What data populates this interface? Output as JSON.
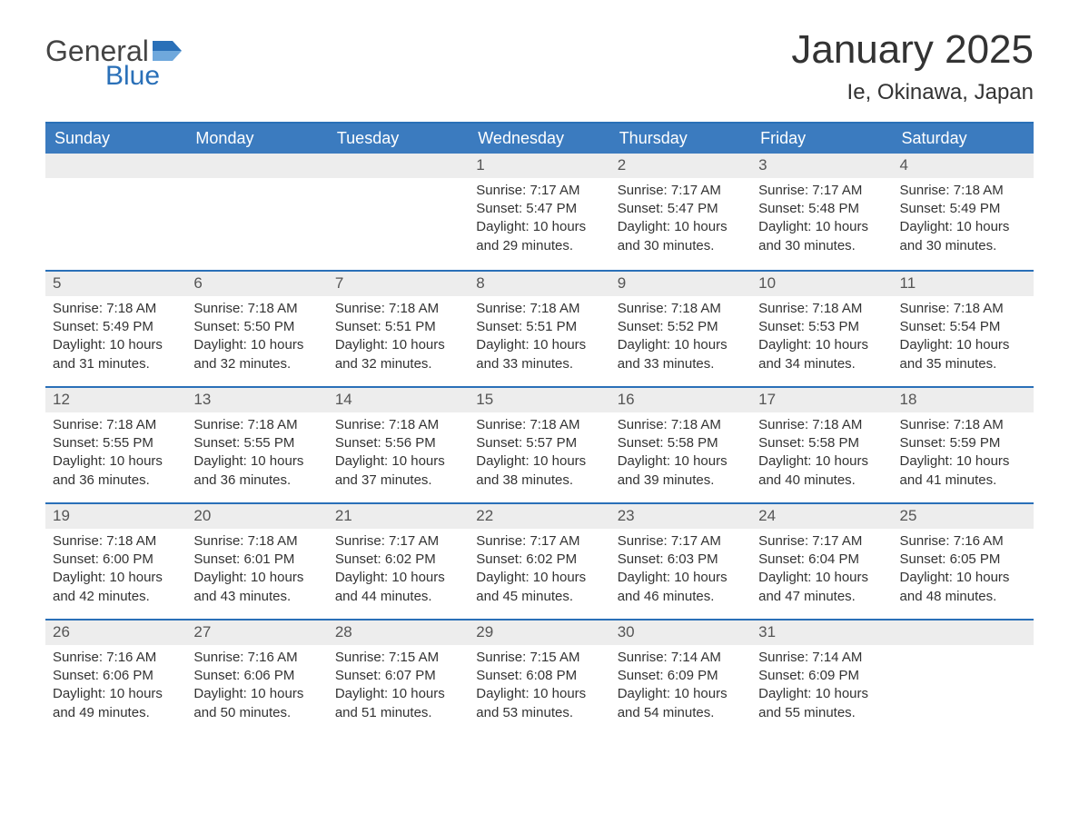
{
  "brand": {
    "line1": "General",
    "line2": "Blue"
  },
  "title": "January 2025",
  "location": "Ie, Okinawa, Japan",
  "colors": {
    "header_bg": "#3b7bbf",
    "accent": "#2a70b8",
    "daynum_bg": "#ededed",
    "text": "#333333",
    "bg": "#ffffff"
  },
  "day_names": [
    "Sunday",
    "Monday",
    "Tuesday",
    "Wednesday",
    "Thursday",
    "Friday",
    "Saturday"
  ],
  "weeks": [
    [
      {
        "blank": true
      },
      {
        "blank": true
      },
      {
        "blank": true
      },
      {
        "n": "1",
        "sunrise": "7:17 AM",
        "sunset": "5:47 PM",
        "daylight": "10 hours and 29 minutes."
      },
      {
        "n": "2",
        "sunrise": "7:17 AM",
        "sunset": "5:47 PM",
        "daylight": "10 hours and 30 minutes."
      },
      {
        "n": "3",
        "sunrise": "7:17 AM",
        "sunset": "5:48 PM",
        "daylight": "10 hours and 30 minutes."
      },
      {
        "n": "4",
        "sunrise": "7:18 AM",
        "sunset": "5:49 PM",
        "daylight": "10 hours and 30 minutes."
      }
    ],
    [
      {
        "n": "5",
        "sunrise": "7:18 AM",
        "sunset": "5:49 PM",
        "daylight": "10 hours and 31 minutes."
      },
      {
        "n": "6",
        "sunrise": "7:18 AM",
        "sunset": "5:50 PM",
        "daylight": "10 hours and 32 minutes."
      },
      {
        "n": "7",
        "sunrise": "7:18 AM",
        "sunset": "5:51 PM",
        "daylight": "10 hours and 32 minutes."
      },
      {
        "n": "8",
        "sunrise": "7:18 AM",
        "sunset": "5:51 PM",
        "daylight": "10 hours and 33 minutes."
      },
      {
        "n": "9",
        "sunrise": "7:18 AM",
        "sunset": "5:52 PM",
        "daylight": "10 hours and 33 minutes."
      },
      {
        "n": "10",
        "sunrise": "7:18 AM",
        "sunset": "5:53 PM",
        "daylight": "10 hours and 34 minutes."
      },
      {
        "n": "11",
        "sunrise": "7:18 AM",
        "sunset": "5:54 PM",
        "daylight": "10 hours and 35 minutes."
      }
    ],
    [
      {
        "n": "12",
        "sunrise": "7:18 AM",
        "sunset": "5:55 PM",
        "daylight": "10 hours and 36 minutes."
      },
      {
        "n": "13",
        "sunrise": "7:18 AM",
        "sunset": "5:55 PM",
        "daylight": "10 hours and 36 minutes."
      },
      {
        "n": "14",
        "sunrise": "7:18 AM",
        "sunset": "5:56 PM",
        "daylight": "10 hours and 37 minutes."
      },
      {
        "n": "15",
        "sunrise": "7:18 AM",
        "sunset": "5:57 PM",
        "daylight": "10 hours and 38 minutes."
      },
      {
        "n": "16",
        "sunrise": "7:18 AM",
        "sunset": "5:58 PM",
        "daylight": "10 hours and 39 minutes."
      },
      {
        "n": "17",
        "sunrise": "7:18 AM",
        "sunset": "5:58 PM",
        "daylight": "10 hours and 40 minutes."
      },
      {
        "n": "18",
        "sunrise": "7:18 AM",
        "sunset": "5:59 PM",
        "daylight": "10 hours and 41 minutes."
      }
    ],
    [
      {
        "n": "19",
        "sunrise": "7:18 AM",
        "sunset": "6:00 PM",
        "daylight": "10 hours and 42 minutes."
      },
      {
        "n": "20",
        "sunrise": "7:18 AM",
        "sunset": "6:01 PM",
        "daylight": "10 hours and 43 minutes."
      },
      {
        "n": "21",
        "sunrise": "7:17 AM",
        "sunset": "6:02 PM",
        "daylight": "10 hours and 44 minutes."
      },
      {
        "n": "22",
        "sunrise": "7:17 AM",
        "sunset": "6:02 PM",
        "daylight": "10 hours and 45 minutes."
      },
      {
        "n": "23",
        "sunrise": "7:17 AM",
        "sunset": "6:03 PM",
        "daylight": "10 hours and 46 minutes."
      },
      {
        "n": "24",
        "sunrise": "7:17 AM",
        "sunset": "6:04 PM",
        "daylight": "10 hours and 47 minutes."
      },
      {
        "n": "25",
        "sunrise": "7:16 AM",
        "sunset": "6:05 PM",
        "daylight": "10 hours and 48 minutes."
      }
    ],
    [
      {
        "n": "26",
        "sunrise": "7:16 AM",
        "sunset": "6:06 PM",
        "daylight": "10 hours and 49 minutes."
      },
      {
        "n": "27",
        "sunrise": "7:16 AM",
        "sunset": "6:06 PM",
        "daylight": "10 hours and 50 minutes."
      },
      {
        "n": "28",
        "sunrise": "7:15 AM",
        "sunset": "6:07 PM",
        "daylight": "10 hours and 51 minutes."
      },
      {
        "n": "29",
        "sunrise": "7:15 AM",
        "sunset": "6:08 PM",
        "daylight": "10 hours and 53 minutes."
      },
      {
        "n": "30",
        "sunrise": "7:14 AM",
        "sunset": "6:09 PM",
        "daylight": "10 hours and 54 minutes."
      },
      {
        "n": "31",
        "sunrise": "7:14 AM",
        "sunset": "6:09 PM",
        "daylight": "10 hours and 55 minutes."
      },
      {
        "blank": true
      }
    ]
  ],
  "labels": {
    "sunrise": "Sunrise: ",
    "sunset": "Sunset: ",
    "daylight": "Daylight: "
  }
}
